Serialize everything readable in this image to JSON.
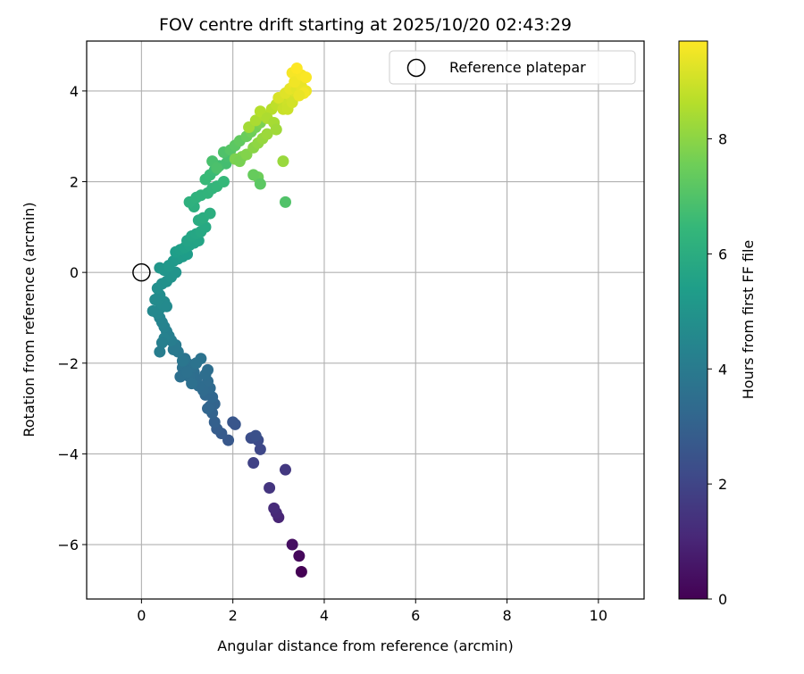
{
  "chart_data": {
    "type": "scatter",
    "title": "FOV centre drift starting at 2025/10/20 02:43:29",
    "xlabel": "Angular distance from reference (arcmin)",
    "ylabel": "Rotation from reference (arcmin)",
    "xlim": [
      -1.2,
      11.0
    ],
    "ylim": [
      -7.2,
      5.1
    ],
    "xticks": [
      0,
      2,
      4,
      6,
      8,
      10
    ],
    "yticks": [
      -6,
      -4,
      -2,
      0,
      2,
      4
    ],
    "grid": true,
    "legend": {
      "position": "top-right",
      "entries": [
        "Reference platepar"
      ]
    },
    "reference_point": {
      "x": 0,
      "y": 0,
      "label": "Reference platepar"
    },
    "colorbar": {
      "label": "Hours from first FF file",
      "colormap": "viridis",
      "min": 0,
      "max": 9.7,
      "ticks": [
        0,
        2,
        4,
        6,
        8
      ]
    },
    "points": {
      "x": [
        3.5,
        3.45,
        3.3,
        3.0,
        2.95,
        2.9,
        3.15,
        2.8,
        2.45,
        2.6,
        2.55,
        2.4,
        2.5,
        2.05,
        2.0,
        1.9,
        1.75,
        1.65,
        1.6,
        1.55,
        1.6,
        1.5,
        1.55,
        1.45,
        1.4,
        1.5,
        1.45,
        1.35,
        1.25,
        1.2,
        1.15,
        1.1,
        1.05,
        1.0,
        0.95,
        0.9,
        0.85,
        1.0,
        1.1,
        1.45,
        1.4,
        1.3,
        1.2,
        0.95,
        0.9,
        0.8,
        0.75,
        0.7,
        0.65,
        0.6,
        0.55,
        0.5,
        0.45,
        0.4,
        0.5,
        0.45,
        0.4,
        0.35,
        0.4,
        0.45,
        0.5,
        0.55,
        0.4,
        0.3,
        0.25,
        0.35,
        0.45,
        0.55,
        0.65,
        0.75,
        0.5,
        0.4,
        0.6,
        0.7,
        0.8,
        0.9,
        1.0,
        0.75,
        0.85,
        0.95,
        1.05,
        1.15,
        1.25,
        1.0,
        1.1,
        1.2,
        1.3,
        1.4,
        1.25,
        1.35,
        1.5,
        1.15,
        1.05,
        1.2,
        1.3,
        1.45,
        1.55,
        1.65,
        1.8,
        1.4,
        1.5,
        1.6,
        1.7,
        1.85,
        1.9,
        1.55,
        1.65,
        1.8,
        1.95,
        2.05,
        2.15,
        2.3,
        2.4,
        2.5,
        2.6,
        3.15,
        2.55,
        2.45,
        2.6,
        2.2,
        2.05,
        2.15,
        2.3,
        2.45,
        2.55,
        2.65,
        2.75,
        2.35,
        2.5,
        2.7,
        2.85,
        2.95,
        3.05,
        2.6,
        2.75,
        2.9,
        2.95,
        3.1,
        3.2,
        3.3,
        3.4,
        3.0,
        3.15,
        3.25,
        3.35,
        3.45,
        3.5,
        3.2,
        3.3,
        3.1,
        3.4,
        3.5,
        3.6,
        3.3,
        3.35,
        3.5,
        3.55,
        3.6,
        3.4,
        3.45
      ],
      "y": [
        -6.6,
        -6.25,
        -6.0,
        -5.4,
        -5.3,
        -5.2,
        -4.35,
        -4.75,
        -4.2,
        -3.9,
        -3.7,
        -3.65,
        -3.6,
        -3.35,
        -3.3,
        -3.7,
        -3.55,
        -3.45,
        -3.3,
        -3.1,
        -2.9,
        -2.95,
        -2.75,
        -3.0,
        -2.7,
        -2.55,
        -2.4,
        -2.6,
        -2.5,
        -2.35,
        -2.2,
        -2.1,
        -2.3,
        -2.0,
        -1.95,
        -2.1,
        -2.3,
        -2.2,
        -2.45,
        -2.15,
        -2.25,
        -1.9,
        -2.0,
        -1.9,
        -1.95,
        -1.75,
        -1.6,
        -1.7,
        -1.5,
        -1.4,
        -1.3,
        -1.2,
        -1.1,
        -1.0,
        -1.45,
        -1.55,
        -1.75,
        -0.9,
        -0.8,
        -0.7,
        -0.65,
        -0.75,
        -0.5,
        -0.6,
        -0.85,
        -0.35,
        -0.25,
        -0.2,
        -0.1,
        0.0,
        0.05,
        0.1,
        0.15,
        0.25,
        0.3,
        0.35,
        0.4,
        0.45,
        0.5,
        0.55,
        0.6,
        0.65,
        0.7,
        0.7,
        0.8,
        0.85,
        0.9,
        1.0,
        1.15,
        1.2,
        1.3,
        1.45,
        1.55,
        1.65,
        1.7,
        1.75,
        1.85,
        1.9,
        2.0,
        2.05,
        2.15,
        2.25,
        2.35,
        2.4,
        2.55,
        2.45,
        2.3,
        2.65,
        2.7,
        2.8,
        2.9,
        3.0,
        3.1,
        3.2,
        3.3,
        1.55,
        2.1,
        2.15,
        1.95,
        2.55,
        2.5,
        2.45,
        2.6,
        2.75,
        2.85,
        2.95,
        3.05,
        3.2,
        3.35,
        3.45,
        3.6,
        3.7,
        3.8,
        3.55,
        3.4,
        3.3,
        3.15,
        3.6,
        3.7,
        3.8,
        3.9,
        3.85,
        3.95,
        4.05,
        4.15,
        4.25,
        4.3,
        3.6,
        3.75,
        2.45,
        4.05,
        4.1,
        4.0,
        4.4,
        4.2,
        4.35,
        3.95,
        4.3,
        4.5,
        3.9
      ],
      "hours": [
        0.0,
        0.2,
        0.4,
        1.0,
        1.1,
        1.2,
        1.6,
        1.5,
        1.9,
        2.1,
        2.2,
        2.3,
        2.4,
        2.55,
        2.6,
        2.65,
        2.75,
        2.85,
        2.95,
        3.05,
        3.1,
        3.12,
        3.2,
        3.15,
        3.25,
        3.3,
        3.38,
        3.35,
        3.4,
        3.45,
        3.5,
        3.55,
        3.52,
        3.6,
        3.65,
        3.62,
        3.58,
        3.6,
        3.55,
        3.5,
        3.48,
        3.7,
        3.68,
        3.75,
        3.8,
        3.9,
        4.0,
        3.95,
        4.1,
        4.15,
        4.2,
        4.3,
        4.35,
        4.4,
        4.25,
        4.2,
        4.1,
        4.5,
        4.55,
        4.6,
        4.65,
        4.6,
        4.7,
        4.65,
        4.55,
        4.8,
        4.85,
        4.9,
        4.95,
        5.0,
        5.05,
        5.1,
        5.15,
        5.2,
        5.25,
        5.3,
        5.35,
        5.4,
        5.45,
        5.5,
        5.55,
        5.6,
        5.65,
        5.62,
        5.7,
        5.75,
        5.8,
        5.85,
        5.95,
        6.0,
        6.05,
        6.1,
        6.15,
        6.2,
        6.25,
        6.3,
        6.35,
        6.4,
        6.45,
        6.5,
        6.55,
        6.6,
        6.7,
        6.75,
        6.8,
        6.85,
        6.9,
        6.95,
        7.1,
        7.2,
        7.3,
        7.45,
        7.55,
        7.65,
        7.75,
        7.0,
        7.5,
        7.4,
        7.2,
        7.8,
        7.75,
        7.7,
        7.85,
        7.95,
        8.05,
        8.15,
        8.25,
        8.35,
        8.45,
        8.55,
        8.65,
        8.75,
        8.85,
        8.6,
        8.5,
        8.4,
        8.3,
        8.9,
        9.0,
        9.1,
        9.2,
        9.15,
        9.25,
        9.35,
        9.45,
        9.5,
        9.55,
        8.95,
        9.05,
        8.2,
        9.3,
        9.4,
        9.45,
        9.6,
        9.5,
        9.6,
        9.55,
        9.65,
        9.7,
        9.4
      ]
    }
  }
}
